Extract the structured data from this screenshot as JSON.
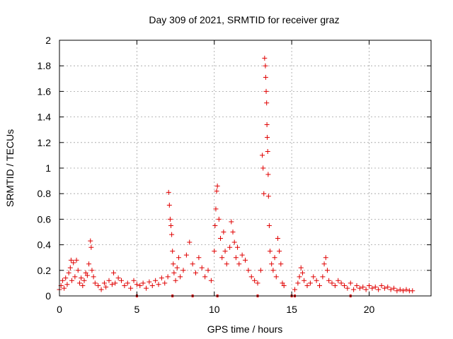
{
  "chart_data": {
    "type": "scatter",
    "title": "Day 309 of 2021, SRMTID for receiver graz",
    "xlabel": "GPS time / hours",
    "ylabel": "SRMTID / TECUs",
    "xlim": [
      0,
      24
    ],
    "ylim": [
      0,
      2
    ],
    "x_ticks": [
      0,
      5,
      10,
      15,
      20
    ],
    "y_ticks": [
      0,
      0.2,
      0.4,
      0.6,
      0.8,
      1,
      1.2,
      1.4,
      1.6,
      1.8,
      2
    ],
    "x_tick_labels": [
      "0",
      "5",
      "10",
      "15",
      "20"
    ],
    "y_tick_labels": [
      "0",
      "0.2",
      "0.4",
      "0.6",
      "0.8",
      "1",
      "1.2",
      "1.4",
      "1.6",
      "1.8",
      "2"
    ],
    "grid": true,
    "marker": "+",
    "colors": {
      "series": "#e00000",
      "grid": "#a0a0a0",
      "axis": "#000000"
    },
    "series": [
      {
        "name": "SRMTID",
        "points": [
          [
            0.0,
            0.05
          ],
          [
            0.1,
            0.08
          ],
          [
            0.2,
            0.12
          ],
          [
            0.3,
            0.06
          ],
          [
            0.4,
            0.14
          ],
          [
            0.5,
            0.09
          ],
          [
            0.6,
            0.18
          ],
          [
            0.7,
            0.22
          ],
          [
            0.75,
            0.28
          ],
          [
            0.8,
            0.12
          ],
          [
            0.9,
            0.26
          ],
          [
            1.0,
            0.15
          ],
          [
            1.1,
            0.28
          ],
          [
            1.2,
            0.2
          ],
          [
            1.3,
            0.1
          ],
          [
            1.4,
            0.14
          ],
          [
            1.5,
            0.08
          ],
          [
            1.6,
            0.12
          ],
          [
            1.7,
            0.18
          ],
          [
            1.8,
            0.16
          ],
          [
            1.9,
            0.25
          ],
          [
            2.0,
            0.43
          ],
          [
            2.05,
            0.38
          ],
          [
            2.1,
            0.2
          ],
          [
            2.2,
            0.15
          ],
          [
            2.3,
            0.1
          ],
          [
            2.5,
            0.08
          ],
          [
            2.7,
            0.05
          ],
          [
            2.9,
            0.1
          ],
          [
            3.0,
            0.07
          ],
          [
            3.2,
            0.12
          ],
          [
            3.4,
            0.09
          ],
          [
            3.5,
            0.18
          ],
          [
            3.6,
            0.1
          ],
          [
            3.8,
            0.14
          ],
          [
            4.0,
            0.12
          ],
          [
            4.2,
            0.08
          ],
          [
            4.4,
            0.1
          ],
          [
            4.6,
            0.06
          ],
          [
            4.8,
            0.12
          ],
          [
            5.0,
            0.09
          ],
          [
            5.2,
            0.08
          ],
          [
            5.4,
            0.1
          ],
          [
            5.6,
            0.06
          ],
          [
            5.8,
            0.11
          ],
          [
            6.0,
            0.08
          ],
          [
            6.2,
            0.12
          ],
          [
            6.4,
            0.09
          ],
          [
            6.6,
            0.14
          ],
          [
            6.8,
            0.1
          ],
          [
            7.0,
            0.15
          ],
          [
            7.05,
            0.81
          ],
          [
            7.1,
            0.71
          ],
          [
            7.15,
            0.6
          ],
          [
            7.2,
            0.55
          ],
          [
            7.25,
            0.48
          ],
          [
            7.3,
            0.35
          ],
          [
            7.35,
            0.25
          ],
          [
            7.4,
            0.18
          ],
          [
            7.5,
            0.12
          ],
          [
            7.6,
            0.22
          ],
          [
            7.7,
            0.3
          ],
          [
            7.8,
            0.15
          ],
          [
            8.0,
            0.2
          ],
          [
            8.2,
            0.32
          ],
          [
            8.4,
            0.42
          ],
          [
            8.6,
            0.25
          ],
          [
            8.8,
            0.18
          ],
          [
            9.0,
            0.3
          ],
          [
            9.2,
            0.22
          ],
          [
            9.4,
            0.15
          ],
          [
            9.6,
            0.2
          ],
          [
            9.8,
            0.12
          ],
          [
            10.0,
            0.35
          ],
          [
            10.05,
            0.55
          ],
          [
            10.1,
            0.68
          ],
          [
            10.15,
            0.82
          ],
          [
            10.2,
            0.86
          ],
          [
            10.3,
            0.6
          ],
          [
            10.4,
            0.45
          ],
          [
            10.5,
            0.3
          ],
          [
            10.6,
            0.5
          ],
          [
            10.7,
            0.35
          ],
          [
            10.8,
            0.25
          ],
          [
            11.0,
            0.38
          ],
          [
            11.1,
            0.58
          ],
          [
            11.2,
            0.5
          ],
          [
            11.3,
            0.42
          ],
          [
            11.4,
            0.3
          ],
          [
            11.5,
            0.38
          ],
          [
            11.6,
            0.25
          ],
          [
            11.8,
            0.32
          ],
          [
            12.0,
            0.28
          ],
          [
            12.2,
            0.2
          ],
          [
            12.4,
            0.15
          ],
          [
            12.6,
            0.12
          ],
          [
            12.8,
            0.1
          ],
          [
            13.0,
            0.2
          ],
          [
            13.1,
            1.1
          ],
          [
            13.15,
            1.0
          ],
          [
            13.2,
            0.8
          ],
          [
            13.25,
            1.86
          ],
          [
            13.3,
            1.8
          ],
          [
            13.32,
            1.71
          ],
          [
            13.35,
            1.6
          ],
          [
            13.38,
            1.51
          ],
          [
            13.4,
            1.34
          ],
          [
            13.42,
            1.24
          ],
          [
            13.45,
            1.13
          ],
          [
            13.48,
            0.95
          ],
          [
            13.5,
            0.78
          ],
          [
            13.55,
            0.55
          ],
          [
            13.6,
            0.35
          ],
          [
            13.7,
            0.25
          ],
          [
            13.8,
            0.2
          ],
          [
            13.9,
            0.3
          ],
          [
            14.0,
            0.15
          ],
          [
            14.1,
            0.45
          ],
          [
            14.2,
            0.35
          ],
          [
            14.3,
            0.25
          ],
          [
            14.4,
            0.1
          ],
          [
            14.5,
            0.08
          ],
          [
            15.2,
            0.05
          ],
          [
            15.4,
            0.1
          ],
          [
            15.5,
            0.15
          ],
          [
            15.6,
            0.22
          ],
          [
            15.7,
            0.18
          ],
          [
            15.8,
            0.12
          ],
          [
            16.0,
            0.08
          ],
          [
            16.2,
            0.1
          ],
          [
            16.4,
            0.15
          ],
          [
            16.6,
            0.12
          ],
          [
            16.8,
            0.08
          ],
          [
            17.0,
            0.15
          ],
          [
            17.1,
            0.25
          ],
          [
            17.2,
            0.3
          ],
          [
            17.3,
            0.2
          ],
          [
            17.4,
            0.12
          ],
          [
            17.6,
            0.1
          ],
          [
            17.8,
            0.08
          ],
          [
            18.0,
            0.12
          ],
          [
            18.2,
            0.1
          ],
          [
            18.4,
            0.08
          ],
          [
            18.6,
            0.06
          ],
          [
            18.8,
            0.1
          ],
          [
            19.0,
            0.05
          ],
          [
            19.2,
            0.08
          ],
          [
            19.4,
            0.06
          ],
          [
            19.6,
            0.07
          ],
          [
            19.8,
            0.05
          ],
          [
            20.0,
            0.08
          ],
          [
            20.2,
            0.06
          ],
          [
            20.4,
            0.07
          ],
          [
            20.6,
            0.05
          ],
          [
            20.8,
            0.08
          ],
          [
            21.0,
            0.06
          ],
          [
            21.2,
            0.07
          ],
          [
            21.4,
            0.05
          ],
          [
            21.6,
            0.06
          ],
          [
            21.8,
            0.04
          ],
          [
            22.0,
            0.05
          ],
          [
            22.2,
            0.04
          ],
          [
            22.4,
            0.05
          ],
          [
            22.6,
            0.04
          ],
          [
            22.8,
            0.04
          ]
        ]
      }
    ],
    "zero_markers_x": [
      5.0,
      7.3,
      8.6,
      10.2,
      12.8,
      15.0,
      15.2,
      18.8
    ]
  }
}
